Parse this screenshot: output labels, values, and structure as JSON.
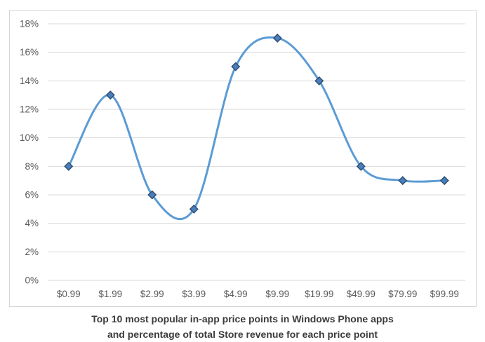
{
  "chart_data": {
    "type": "line",
    "categories": [
      "$0.99",
      "$1.99",
      "$2.99",
      "$3.99",
      "$4.99",
      "$9.99",
      "$19.99",
      "$49.99",
      "$79.99",
      "$99.99"
    ],
    "values": [
      8,
      13,
      6,
      5,
      15,
      17,
      14,
      8,
      7,
      7
    ],
    "series_name": "Percentage of total Store revenue",
    "title": "Top 10 most popular in-app price points in Windows Phone apps and percentage of total Store revenue for each price point",
    "caption_line1": "Top 10 most popular in-app price points in Windows Phone apps",
    "caption_line2": "and percentage of total Store revenue for each price point",
    "xlabel": "",
    "ylabel": "",
    "ylim": [
      0,
      18
    ],
    "ytick_step": 2,
    "ytick_labels": [
      "0%",
      "2%",
      "4%",
      "6%",
      "8%",
      "10%",
      "12%",
      "14%",
      "16%",
      "18%"
    ],
    "grid": true,
    "legend_position": "none",
    "line_style": "smooth",
    "marker": "diamond",
    "colors": {
      "line": "#5b9bd5",
      "marker_fill": "#4a7ebb",
      "marker_border": "#2e4d71",
      "gridline": "#d9d9d9",
      "axis_label": "#595959",
      "caption": "#3b3b3b",
      "chart_border": "#d6d6d6",
      "background": "#ffffff"
    }
  }
}
